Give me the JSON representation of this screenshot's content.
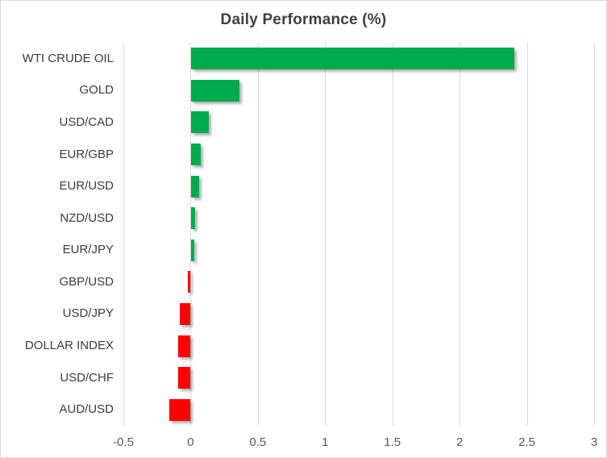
{
  "chart_data": {
    "type": "bar",
    "orientation": "horizontal",
    "title": "Daily Performance (%)",
    "categories": [
      "WTI CRUDE OIL",
      "GOLD",
      "USD/CAD",
      "EUR/GBP",
      "EUR/USD",
      "NZD/USD",
      "EUR/JPY",
      "GBP/USD",
      "USD/JPY",
      "DOLLAR INDEX",
      "USD/CHF",
      "AUD/USD"
    ],
    "values": [
      2.4,
      0.36,
      0.13,
      0.07,
      0.06,
      0.03,
      0.02,
      -0.02,
      -0.08,
      -0.09,
      -0.09,
      -0.16
    ],
    "xlim": [
      -0.5,
      3
    ],
    "x_ticks": [
      "-0.5",
      "0",
      "0.5",
      "1",
      "1.5",
      "2",
      "2.5",
      "3"
    ],
    "x_tick_values": [
      -0.5,
      0,
      0.5,
      1,
      1.5,
      2,
      2.5,
      3
    ],
    "grid": "vertical",
    "legend": "none",
    "colors": {
      "positive": "#00AB4E",
      "negative": "#FF0000",
      "title": "#3F3F3F",
      "category_label": "#3B3B3B",
      "tick_label": "#595959",
      "gridline": "#D9D9D9",
      "border": "#D9D9D9",
      "background": "#FFFFFF"
    }
  }
}
